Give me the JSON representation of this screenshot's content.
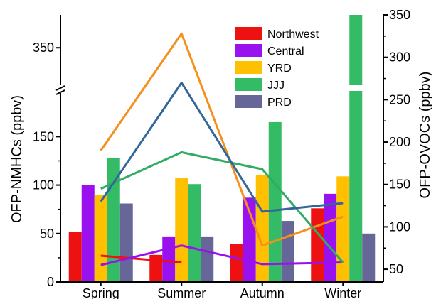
{
  "chart_data": {
    "type": "bar",
    "categories": [
      "Spring",
      "Summer",
      "Autumn",
      "Winter"
    ],
    "left_axis": {
      "label": "OFP-NMHCs (ppbv)",
      "ticks_lower": [
        "0",
        "50",
        "100",
        "150"
      ],
      "tick_upper": "350",
      "range_lower": [
        0,
        195
      ],
      "range_upper": [
        325,
        370
      ],
      "broken": true
    },
    "right_axis": {
      "label": "OFP-OVOCs (ppbv)",
      "ticks": [
        "50",
        "100",
        "150",
        "200",
        "250",
        "300",
        "350"
      ],
      "range": [
        35,
        350
      ]
    },
    "series": [
      {
        "name": "Northwest",
        "color": "#ee1111",
        "values": [
          52,
          28,
          39,
          76
        ]
      },
      {
        "name": "Central",
        "color": "#9911ee",
        "values": [
          100,
          47,
          87,
          91
        ]
      },
      {
        "name": "YRD",
        "color": "#ffc000",
        "values": [
          90,
          107,
          110,
          109
        ]
      },
      {
        "name": "JJJ",
        "color": "#33bb66",
        "values": [
          128,
          101,
          165,
          430
        ]
      },
      {
        "name": "PRD",
        "color": "#666699",
        "values": [
          81,
          47,
          63,
          50
        ]
      }
    ],
    "ovoc_lines": [
      {
        "name": "Northwest",
        "color": "#ee1111",
        "values": [
          66,
          58,
          null,
          null
        ]
      },
      {
        "name": "Central",
        "color": "#9911ee",
        "values": [
          55,
          78,
          56,
          58
        ]
      },
      {
        "name": "YRD",
        "color": "#f5901e",
        "values": [
          190,
          328,
          78,
          112
        ]
      },
      {
        "name": "JJJ",
        "color": "#33aa66",
        "values": [
          145,
          188,
          168,
          58
        ]
      },
      {
        "name": "PRD",
        "color": "#336699",
        "values": [
          130,
          270,
          118,
          128
        ]
      }
    ],
    "legend_position": "top-right"
  }
}
